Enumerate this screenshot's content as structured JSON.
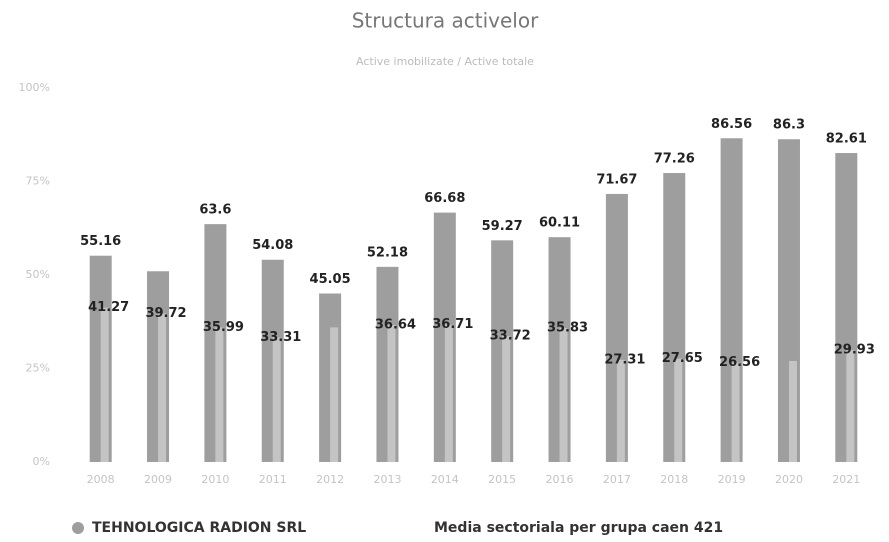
{
  "chart_data": {
    "type": "bar",
    "title": "Structura activelor",
    "subtitle": "Active imobilizate / Active totale",
    "categories": [
      "2008",
      "2009",
      "2010",
      "2011",
      "2012",
      "2013",
      "2014",
      "2015",
      "2016",
      "2017",
      "2018",
      "2019",
      "2020",
      "2021"
    ],
    "series": [
      {
        "name": "TEHNOLOGICA RADION SRL",
        "color": "#9e9e9e",
        "values": [
          55.16,
          51,
          63.6,
          54.08,
          45.05,
          52.18,
          66.68,
          59.27,
          60.11,
          71.67,
          77.26,
          86.56,
          86.3,
          82.61
        ],
        "value_labels": [
          "55.16",
          null,
          "63.6",
          "54.08",
          "45.05",
          "52.18",
          "66.68",
          "59.27",
          "60.11",
          "71.67",
          "77.26",
          "86.56",
          "86.3",
          "82.61"
        ]
      },
      {
        "name": "Media sectoriala per grupa caen 421",
        "color": "#c4c4c4",
        "values": [
          41.27,
          39.72,
          35.99,
          33.31,
          36,
          36.64,
          36.71,
          33.72,
          35.83,
          27.31,
          27.65,
          26.56,
          27,
          29.93
        ],
        "value_labels": [
          "41.27",
          "39.72",
          "35.99",
          "33.31",
          null,
          "36.64",
          "36.71",
          "33.72",
          "35.83",
          "27.31",
          "27.65",
          "26.56",
          null,
          "29.93"
        ]
      }
    ],
    "ylim": [
      0,
      100
    ],
    "yticks": [
      {
        "value": 0,
        "label": "0%"
      },
      {
        "value": 25,
        "label": "25%"
      },
      {
        "value": 50,
        "label": "50%"
      },
      {
        "value": 75,
        "label": "75%"
      },
      {
        "value": 100,
        "label": "100%"
      }
    ]
  }
}
